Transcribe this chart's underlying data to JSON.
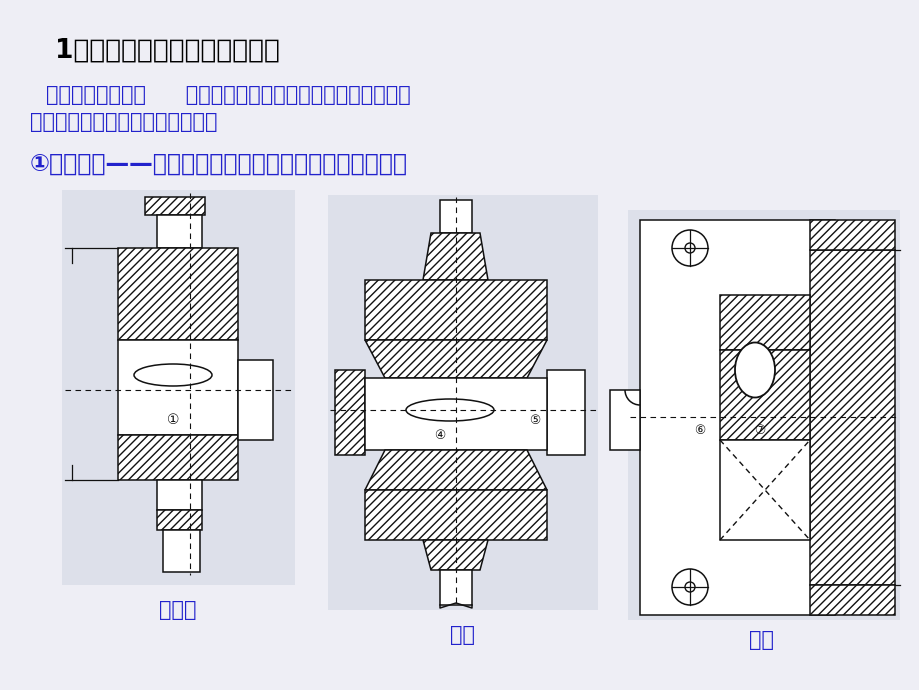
{
  "bg_color": "#eeeef5",
  "title_text": "1、轴上零件的轴向定位和固定",
  "title_color": "#000000",
  "title_fontsize": 19,
  "body1_line1": "轴向固定的目的：      保证零件在轴上有确定的轴向位置，防止",
  "body1_line2": "零件作轴向移动，并能承受轴向力",
  "body1_color": "#2222cc",
  "body1_fontsize": 15,
  "highlight_text": "①轴肩固定——结构简单、可靠，并能承受较大轴向力。",
  "highlight_color": "#2222cc",
  "highlight_fontsize": 17,
  "label1": "联轴器",
  "label2": "齿轮",
  "label3": "轴承",
  "label_color": "#2222cc",
  "label_fontsize": 15,
  "diagram_bg": "#dde0ea",
  "line_color": "#111111"
}
